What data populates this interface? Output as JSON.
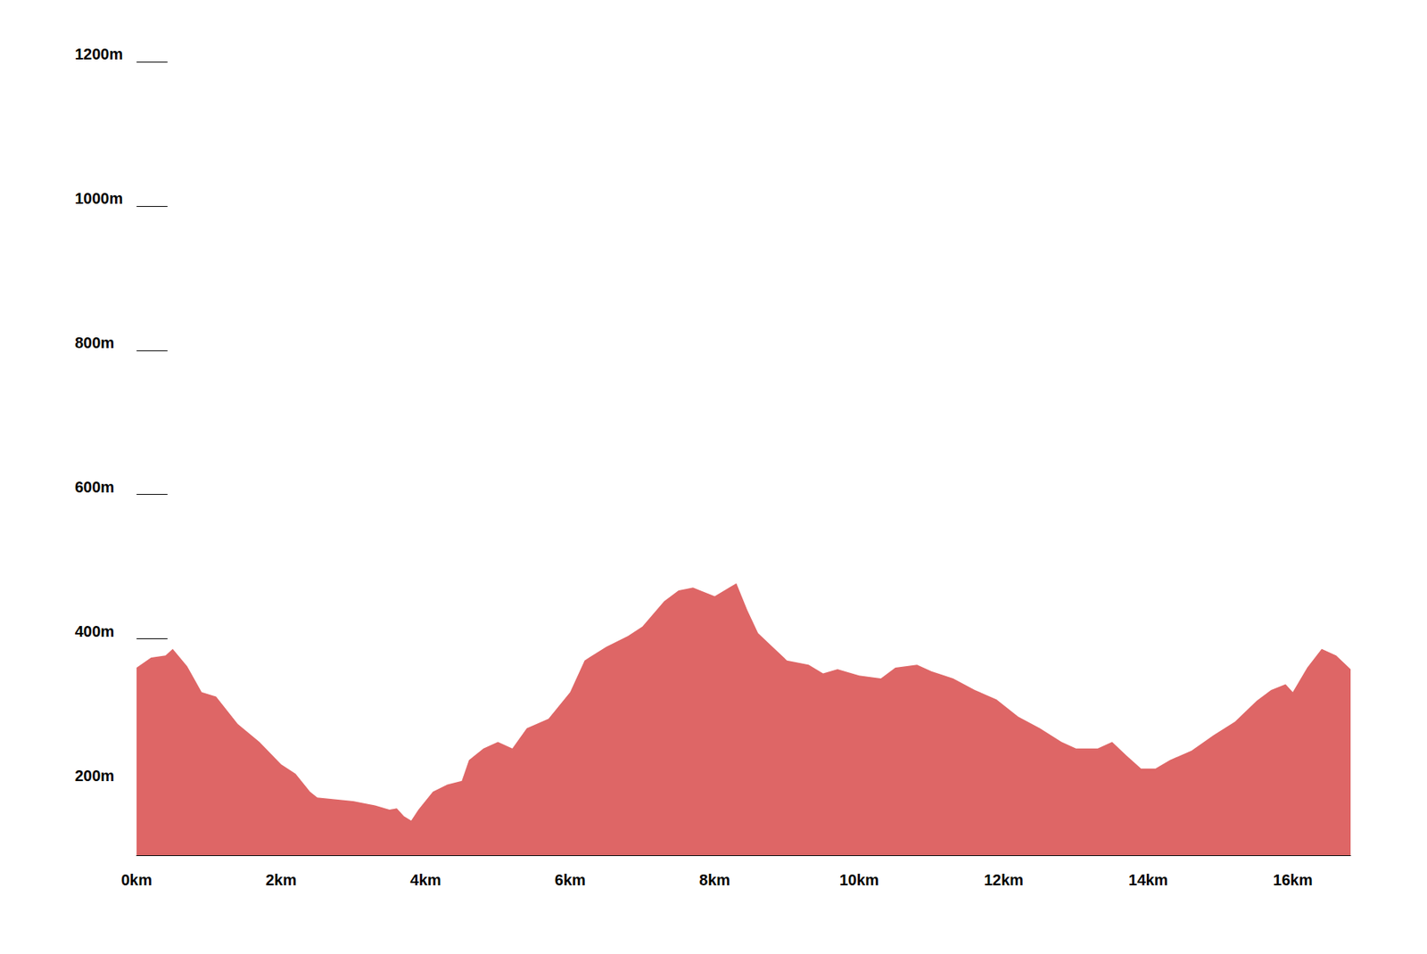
{
  "chart_data": {
    "type": "area",
    "color": "#de6666",
    "grid": false,
    "x": [
      0,
      0.2,
      0.4,
      0.5,
      0.7,
      0.9,
      1.1,
      1.4,
      1.7,
      2.0,
      2.2,
      2.4,
      2.5,
      3.0,
      3.3,
      3.5,
      3.6,
      3.7,
      3.8,
      3.9,
      4.1,
      4.3,
      4.5,
      4.6,
      4.8,
      5.0,
      5.2,
      5.4,
      5.7,
      6.0,
      6.2,
      6.5,
      6.8,
      7.0,
      7.3,
      7.5,
      7.7,
      8.0,
      8.2,
      8.3,
      8.45,
      8.6,
      8.8,
      9.0,
      9.3,
      9.5,
      9.7,
      10.0,
      10.3,
      10.5,
      10.8,
      11.0,
      11.3,
      11.6,
      11.9,
      12.2,
      12.5,
      12.8,
      13.0,
      13.3,
      13.5,
      13.7,
      13.9,
      14.1,
      14.3,
      14.6,
      14.9,
      15.2,
      15.5,
      15.7,
      15.9,
      16.0,
      16.2,
      16.4,
      16.6,
      16.8
    ],
    "values": [
      360,
      374,
      377,
      386,
      362,
      326,
      320,
      282,
      257,
      226,
      213,
      188,
      180,
      175,
      169,
      163,
      165,
      154,
      148,
      163,
      188,
      198,
      203,
      232,
      248,
      257,
      248,
      276,
      289,
      326,
      370,
      389,
      404,
      417,
      452,
      467,
      471,
      459,
      471,
      477,
      440,
      408,
      389,
      370,
      364,
      352,
      358,
      349,
      345,
      360,
      364,
      355,
      345,
      329,
      316,
      292,
      276,
      257,
      248,
      248,
      257,
      238,
      220,
      220,
      232,
      245,
      266,
      285,
      314,
      329,
      337,
      326,
      360,
      386,
      377,
      358
    ],
    "xlim": [
      0,
      16.8
    ],
    "xticks": [
      {
        "value": 0,
        "label": "0km"
      },
      {
        "value": 2,
        "label": "2km"
      },
      {
        "value": 4,
        "label": "4km"
      },
      {
        "value": 6,
        "label": "6km"
      },
      {
        "value": 8,
        "label": "8km"
      },
      {
        "value": 10,
        "label": "10km"
      },
      {
        "value": 12,
        "label": "12km"
      },
      {
        "value": 14,
        "label": "14km"
      },
      {
        "value": 16,
        "label": "16km"
      }
    ],
    "ylim": [
      100,
      1200
    ],
    "yticks": [
      {
        "value": 200,
        "label": "200m"
      },
      {
        "value": 400,
        "label": "400m"
      },
      {
        "value": 600,
        "label": "600m"
      },
      {
        "value": 800,
        "label": "800m"
      },
      {
        "value": 1000,
        "label": "1000m"
      },
      {
        "value": 1200,
        "label": "1200m"
      }
    ]
  }
}
